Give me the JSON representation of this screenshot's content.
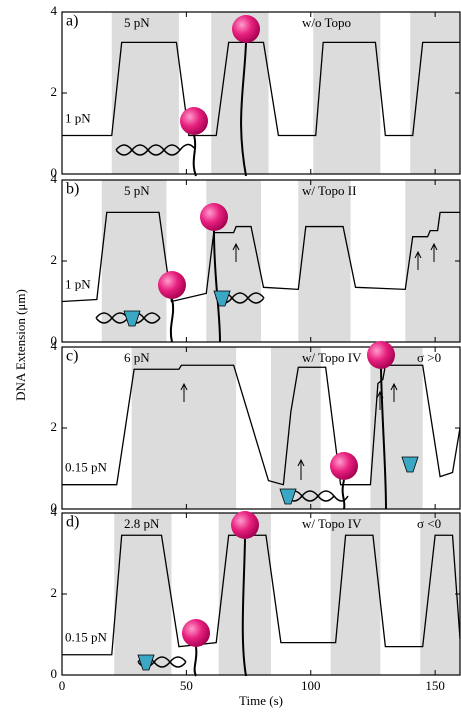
{
  "ylabel": "DNA Extension (μm)",
  "xlabel": "Time (s)",
  "chart_data": [
    {
      "type": "line",
      "label": "a)",
      "force_high": "5 pN",
      "force_low": "1 pN",
      "annotation": "w/o  Topo",
      "xlim": [
        0,
        160
      ],
      "xticks": [
        0,
        50,
        100,
        150
      ],
      "ylim": [
        0,
        4
      ],
      "yticks": [
        0,
        2,
        4
      ],
      "color": "#000000",
      "shaded": [
        [
          20,
          47
        ],
        [
          60,
          83
        ],
        [
          101,
          128
        ],
        [
          140,
          160
        ]
      ],
      "x": [
        0,
        20,
        24,
        46,
        51,
        62,
        67,
        81,
        87,
        102,
        105,
        126,
        130,
        141,
        145,
        160
      ],
      "values": [
        0.95,
        0.95,
        3.25,
        3.25,
        0.95,
        0.95,
        3.25,
        3.25,
        0.95,
        0.95,
        3.25,
        3.25,
        0.95,
        0.95,
        3.25,
        3.25
      ]
    },
    {
      "type": "line",
      "label": "b)",
      "force_high": "5 pN",
      "force_low": "1 pN",
      "annotation": "w/  Topo II",
      "xlim": [
        0,
        160
      ],
      "xticks": [
        0,
        50,
        100,
        150
      ],
      "ylim": [
        0,
        4
      ],
      "yticks": [
        0,
        2,
        4
      ],
      "color": "#000000",
      "shaded": [
        [
          16,
          42
        ],
        [
          58,
          80
        ],
        [
          95,
          116
        ],
        [
          138,
          160
        ]
      ],
      "x": [
        0,
        14,
        18,
        39,
        44,
        58,
        61,
        69,
        70,
        76,
        81,
        95,
        98,
        113,
        118,
        138,
        141,
        147,
        148,
        151,
        152,
        160
      ],
      "values": [
        1.0,
        1.05,
        3.2,
        3.2,
        1.0,
        1.2,
        2.7,
        2.7,
        2.85,
        2.85,
        1.35,
        1.3,
        2.85,
        2.85,
        1.35,
        1.3,
        2.6,
        2.6,
        2.75,
        2.75,
        3.2,
        3.2
      ]
    },
    {
      "type": "line",
      "label": "c)",
      "force_high": "6 pN",
      "force_low": "0.15 pN",
      "annotation": "w/  Topo IV",
      "sigma": "σ >0",
      "xlim": [
        0,
        160
      ],
      "xticks": [
        0,
        50,
        100,
        150
      ],
      "ylim": [
        0,
        4
      ],
      "yticks": [
        0,
        2,
        4
      ],
      "color": "#000000",
      "shaded": [
        [
          28,
          70
        ],
        [
          84,
          104
        ],
        [
          124,
          145
        ]
      ],
      "x": [
        0,
        22,
        29,
        47,
        48,
        69,
        83,
        89,
        92,
        95,
        106,
        112,
        124,
        127,
        129,
        130,
        145,
        152,
        157,
        160
      ],
      "values": [
        0.6,
        0.6,
        3.45,
        3.45,
        3.55,
        3.55,
        0.7,
        0.6,
        2.4,
        3.5,
        3.5,
        0.6,
        0.6,
        3.1,
        3.2,
        3.55,
        3.55,
        0.8,
        0.9,
        2.0
      ]
    },
    {
      "type": "line",
      "label": "d)",
      "force_high": "2.8 pN",
      "force_low": "0.15 pN",
      "annotation": "w/  Topo IV",
      "sigma": "σ <0",
      "xlim": [
        0,
        160
      ],
      "xticks": [
        0,
        50,
        100,
        150
      ],
      "ylim": [
        0,
        4
      ],
      "yticks": [
        0,
        2,
        4
      ],
      "color": "#000000",
      "shaded": [
        [
          21,
          44
        ],
        [
          63,
          84
        ],
        [
          108,
          128
        ],
        [
          144,
          160
        ]
      ],
      "x": [
        0,
        20,
        24,
        40,
        47,
        62,
        67,
        82,
        88,
        110,
        114,
        125,
        130,
        145,
        150,
        157,
        160
      ],
      "values": [
        0.5,
        0.5,
        3.45,
        3.45,
        0.7,
        0.8,
        3.45,
        3.45,
        0.8,
        0.8,
        3.45,
        3.45,
        0.7,
        0.7,
        3.45,
        3.45,
        0.9
      ]
    }
  ]
}
